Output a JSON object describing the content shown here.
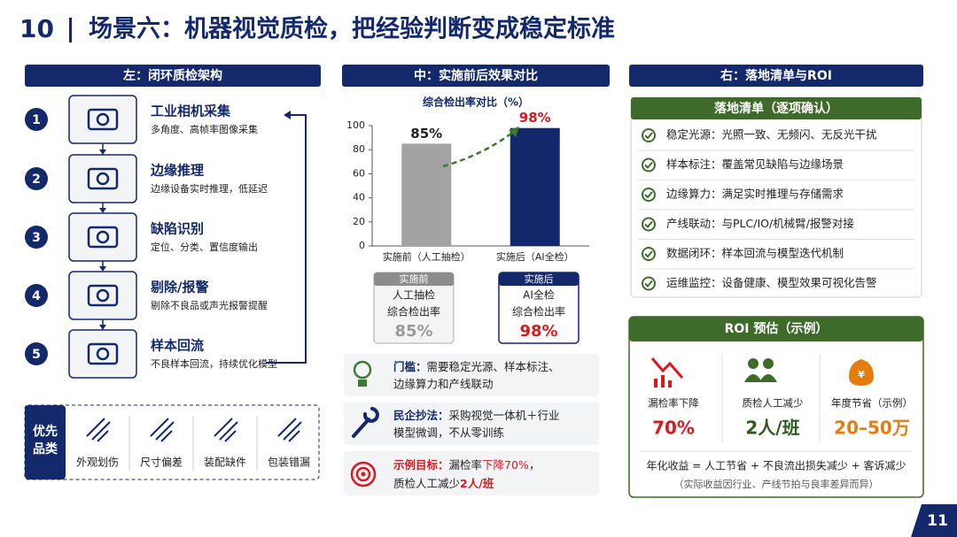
{
  "header": {
    "number": "10",
    "title": "场景六：机器视觉质检，把经验判断变成稳定标准"
  },
  "left": {
    "title": "左：闭环质检架构",
    "steps": [
      {
        "num": "1",
        "title": "工业相机采集",
        "desc": "多角度、高帧率图像采集"
      },
      {
        "num": "2",
        "title": "边缘推理",
        "desc": "边缘设备实时推理，低延迟"
      },
      {
        "num": "3",
        "title": "缺陷识别",
        "desc": "定位、分类、置信度输出"
      },
      {
        "num": "4",
        "title": "剔除/报警",
        "desc": "剔除不良品或声光报警提醒"
      },
      {
        "num": "5",
        "title": "样本回流",
        "desc": "不良样本回流，持续优化模型"
      }
    ],
    "categories": {
      "label": [
        "优先",
        "品类"
      ],
      "items": [
        "外观划伤",
        "尺寸偏差",
        "装配缺件",
        "包装错漏"
      ]
    }
  },
  "middle": {
    "title": "中：实施前后效果对比",
    "cards": [
      {
        "tag": "实施前",
        "lines": [
          "人工抽检",
          "综合检出率"
        ]
      },
      {
        "tag": "实施后",
        "lines": [
          "AI全检",
          "综合检出率"
        ]
      }
    ],
    "notes": [
      {
        "head": "门槛：",
        "lines": [
          "需要稳定光源、样本标注、",
          "边缘算力和产线联动"
        ]
      },
      {
        "head": "民企抄法：",
        "lines": [
          "采购视觉一体机＋行业",
          "模型微调，不从零训练"
        ]
      },
      {
        "head": "示例目标：",
        "lines": [
          [
            "漏检率",
            "下降70%",
            "，"
          ],
          [
            "质检人工减少",
            "2人/班"
          ]
        ]
      }
    ]
  },
  "chart_data": {
    "type": "bar",
    "title": "综合检出率对比（%）",
    "categories": [
      "实施前（人工抽检）",
      "实施后（AI全检）"
    ],
    "values": [
      85,
      98
    ],
    "value_labels": [
      "85%",
      "98%"
    ],
    "colors": [
      "#a3a3a3",
      "#12286a"
    ],
    "ylim": [
      0,
      100
    ],
    "yticks": [
      0,
      20,
      40,
      60,
      80,
      100
    ]
  },
  "right": {
    "title": "右：落地清单与ROI",
    "checklist_title": "落地清单（逐项确认）",
    "checklist": [
      "稳定光源：光照一致、无频闪、无反光干扰",
      "样本标注：覆盖常见缺陷与边缘场景",
      "边缘算力：满足实时推理与存储需求",
      "产线联动：与PLC/IO/机械臂/报警对接",
      "数据闭环：样本回流与模型迭代机制",
      "运维监控：设备健康、模型效果可视化告警"
    ],
    "roi": {
      "title": "ROI 预估（示例）",
      "metrics": [
        {
          "label": "漏检率下降",
          "value": "70%"
        },
        {
          "label": "质检人工减少",
          "value": "2人/班"
        },
        {
          "label": "年度节省（示例）",
          "value": "20–50万"
        }
      ],
      "formula": "年化收益 = 人工节省 + 不良流出损失减少 + 客诉减少",
      "footnote": "（实际收益因行业、产线节拍与良率差异而异）"
    }
  },
  "page_number": "11"
}
